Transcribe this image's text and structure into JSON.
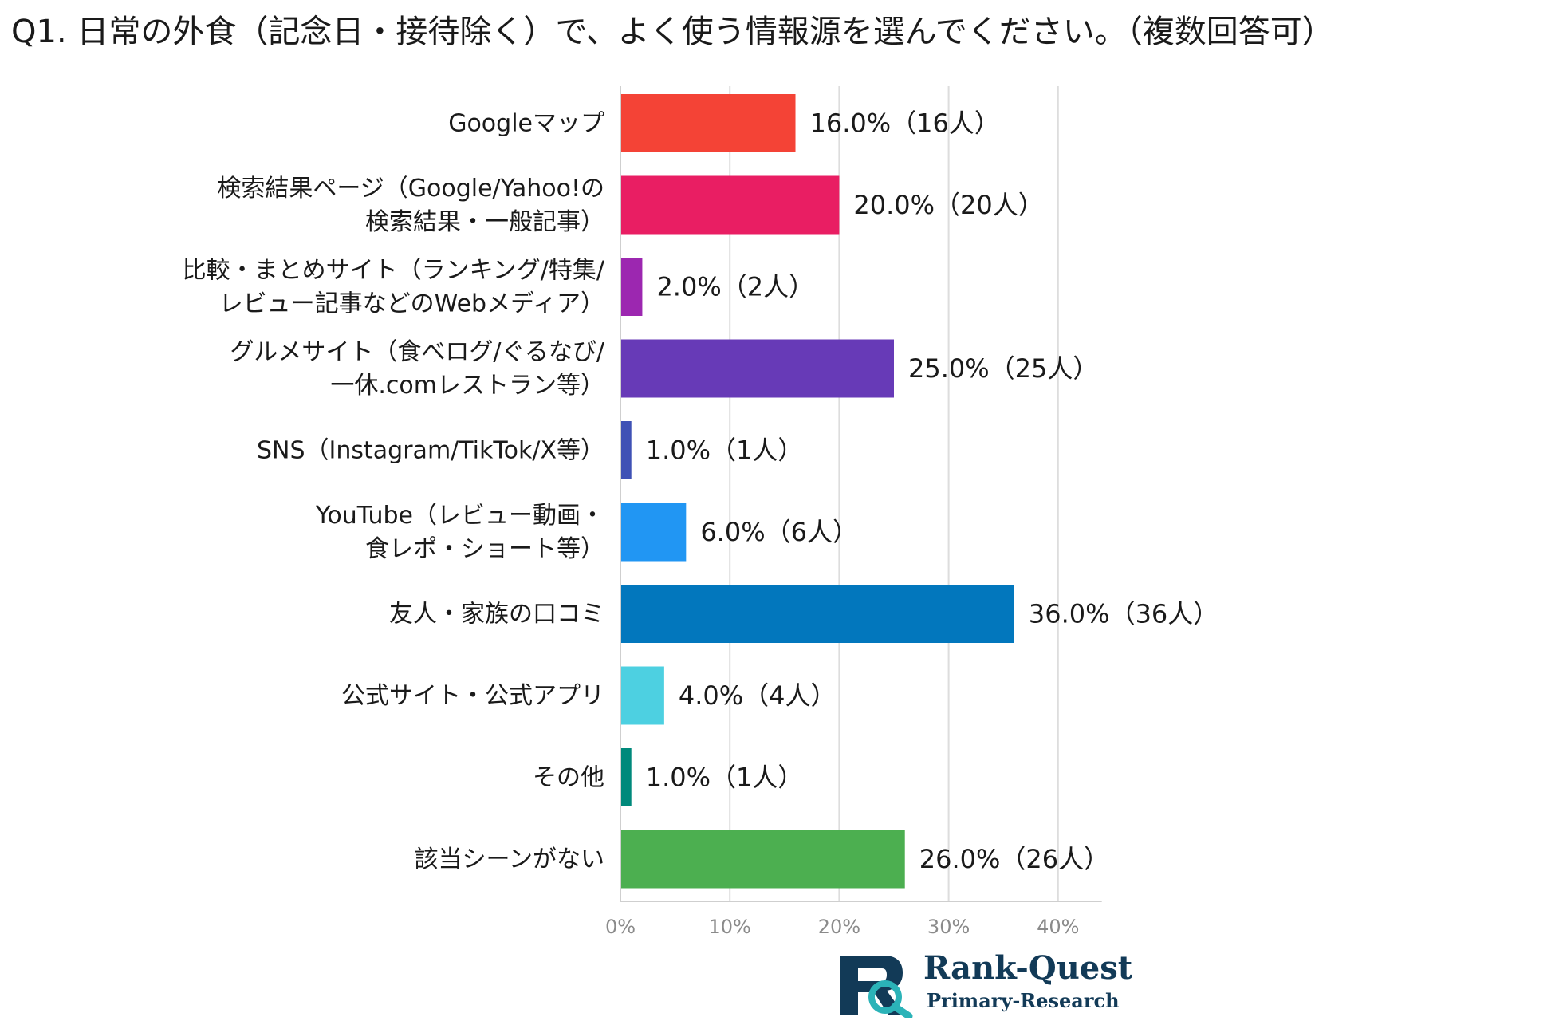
{
  "title": "Q1. 日常の外食（記念日・接待除く）で、よく使う情報源を選んでください。（複数回答可）",
  "chart_data": {
    "type": "bar",
    "orientation": "horizontal",
    "categories": [
      [
        "Googleマップ"
      ],
      [
        "検索結果ページ（Google/Yahoo!の",
        "検索結果・一般記事）"
      ],
      [
        "比較・まとめサイト（ランキング/特集/",
        "レビュー記事などのWebメディア）"
      ],
      [
        "グルメサイト（食べログ/ぐるなび/",
        "一休.comレストラン等）"
      ],
      [
        "SNS（Instagram/TikTok/X等）"
      ],
      [
        "YouTube（レビュー動画・",
        "食レポ・ショート等）"
      ],
      [
        "友人・家族の口コミ"
      ],
      [
        "公式サイト・公式アプリ"
      ],
      [
        "その他"
      ],
      [
        "該当シーンがない"
      ]
    ],
    "values": [
      16.0,
      20.0,
      2.0,
      25.0,
      1.0,
      6.0,
      36.0,
      4.0,
      1.0,
      26.0
    ],
    "value_labels": [
      "16.0%（16人）",
      "20.0%（20人）",
      "2.0%（2人）",
      "25.0%（25人）",
      "1.0%（1人）",
      "6.0%（6人）",
      "36.0%（36人）",
      "4.0%（4人）",
      "1.0%（1人）",
      "26.0%（26人）"
    ],
    "colors": [
      "#f44336",
      "#e91e63",
      "#9c27b0",
      "#673ab7",
      "#3f51b5",
      "#2196f3",
      "#0277bd",
      "#4dd0e1",
      "#00897b",
      "#4caf50"
    ],
    "xlim": [
      0,
      44
    ],
    "xticks": [
      0,
      10,
      20,
      30,
      40
    ],
    "xtick_labels": [
      "0%",
      "10%",
      "20%",
      "30%",
      "40%"
    ],
    "grid": true
  },
  "logo": {
    "name": "Rank-Quest",
    "sub": "Primary-Research",
    "colors": [
      "#123a57",
      "#2bb3b8"
    ]
  }
}
